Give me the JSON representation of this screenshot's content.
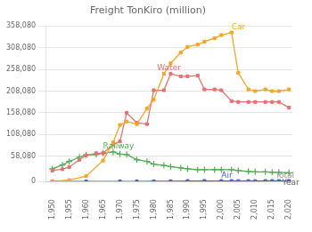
{
  "chart_data": {
    "type": "line",
    "title": "Freight TonKiro (million)",
    "xlim": [
      1948,
      2021
    ],
    "ylim": [
      0,
      358080
    ],
    "xticks": [
      {
        "value": 1950,
        "label": "1,950"
      },
      {
        "value": 1955,
        "label": "1,955"
      },
      {
        "value": 1960,
        "label": "1,960"
      },
      {
        "value": 1965,
        "label": "1,965"
      },
      {
        "value": 1970,
        "label": "1,970"
      },
      {
        "value": 1975,
        "label": "1,975"
      },
      {
        "value": 1980,
        "label": "1,980"
      },
      {
        "value": 1985,
        "label": "1,985"
      },
      {
        "value": 1990,
        "label": "1,990"
      },
      {
        "value": 1995,
        "label": "1,995"
      },
      {
        "value": 2000,
        "label": "2,000"
      },
      {
        "value": 2005,
        "label": "2,005"
      },
      {
        "value": 2010,
        "label": "2,010"
      },
      {
        "value": 2015,
        "label": "2,015"
      },
      {
        "value": 2020,
        "label": "2,020"
      }
    ],
    "yticks": [
      0,
      {
        "value": 58080,
        "label": "58,080"
      },
      {
        "value": 108080,
        "label": "108,080"
      },
      {
        "value": 158080,
        "label": "158,080"
      },
      {
        "value": 208080,
        "label": "208,080"
      },
      {
        "value": 258080,
        "label": "258,080"
      },
      {
        "value": 308080,
        "label": "308,080"
      },
      {
        "value": 358080,
        "label": "358,080"
      }
    ],
    "grid": "y",
    "series": [
      {
        "name": "Car",
        "color": "#f5a623",
        "marker": "square",
        "x": [
          1950,
          1955,
          1960,
          1965,
          1968,
          1970,
          1972,
          1975,
          1978,
          1980,
          1983,
          1985,
          1988,
          1990,
          1993,
          1995,
          1998,
          2000,
          2003,
          2005,
          2008,
          2010,
          2013,
          2015,
          2017,
          2020
        ],
        "values": [
          500,
          3000,
          12000,
          48000,
          90000,
          130000,
          138000,
          132000,
          168000,
          188000,
          248000,
          272000,
          297000,
          310000,
          315000,
          322000,
          330000,
          337000,
          343000,
          250000,
          212000,
          208000,
          212000,
          208000,
          208000,
          212000
        ]
      },
      {
        "name": "Water",
        "color": "#e87070",
        "marker": "square",
        "x": [
          1950,
          1953,
          1955,
          1958,
          1960,
          1963,
          1965,
          1968,
          1970,
          1972,
          1975,
          1978,
          1980,
          1983,
          1985,
          1988,
          1990,
          1993,
          1995,
          1998,
          2000,
          2003,
          2005,
          2008,
          2010,
          2013,
          2015,
          2017,
          2020
        ],
        "values": [
          25000,
          28000,
          33000,
          50000,
          60000,
          65000,
          65000,
          85000,
          92000,
          158000,
          135000,
          132000,
          210000,
          210000,
          248000,
          242000,
          242000,
          244000,
          212000,
          212000,
          210000,
          185000,
          183000,
          183000,
          183000,
          183000,
          183000,
          183000,
          170000
        ]
      },
      {
        "name": "Railway",
        "color": "#50b050",
        "marker": "plus",
        "x": [
          1950,
          1953,
          1955,
          1958,
          1960,
          1963,
          1965,
          1968,
          1970,
          1972,
          1975,
          1978,
          1980,
          1983,
          1985,
          1988,
          1990,
          1993,
          1995,
          1998,
          2000,
          2003,
          2005,
          2008,
          2010,
          2013,
          2015,
          2017,
          2020
        ],
        "values": [
          29000,
          38000,
          46000,
          56000,
          61000,
          62000,
          65000,
          68000,
          63000,
          62000,
          50000,
          46000,
          40000,
          37000,
          34000,
          31000,
          29000,
          27000,
          27000,
          27000,
          27000,
          27000,
          25000,
          23000,
          22000,
          22000,
          21000,
          21000,
          20000
        ]
      },
      {
        "name": "Air",
        "color": "#4060e0",
        "marker": "square",
        "x": [
          1950,
          1960,
          1970,
          1975,
          1980,
          1985,
          1990,
          1995,
          2000,
          2003,
          2005,
          2008,
          2010,
          2013,
          2015,
          2017,
          2020
        ],
        "values": [
          0,
          0,
          30,
          80,
          150,
          400,
          900,
          1100,
          1000,
          900,
          850,
          800,
          800,
          850,
          900,
          900,
          950
        ]
      },
      {
        "name": "Total",
        "color": "#909090",
        "marker": "square",
        "x": [
          2013,
          2015,
          2017,
          2020
        ],
        "values": [
          400,
          500,
          500,
          600
        ]
      }
    ],
    "annotations": [
      {
        "label": "Car",
        "x": 2003,
        "y": 346000,
        "color": "#f5a623"
      },
      {
        "label": "Water",
        "x": 1981,
        "y": 252000,
        "color": "#e87070"
      },
      {
        "label": "Railway",
        "x": 1965,
        "y": 72000,
        "color": "#50b050"
      },
      {
        "label": "Air",
        "x": 2000,
        "y": 4000,
        "color": "#4060e0"
      },
      {
        "label": "Year",
        "x": 2018,
        "y": -13000,
        "color": "#606060"
      },
      {
        "label": "Total",
        "x": 2016,
        "y": 4000,
        "color": "#909090"
      }
    ]
  }
}
